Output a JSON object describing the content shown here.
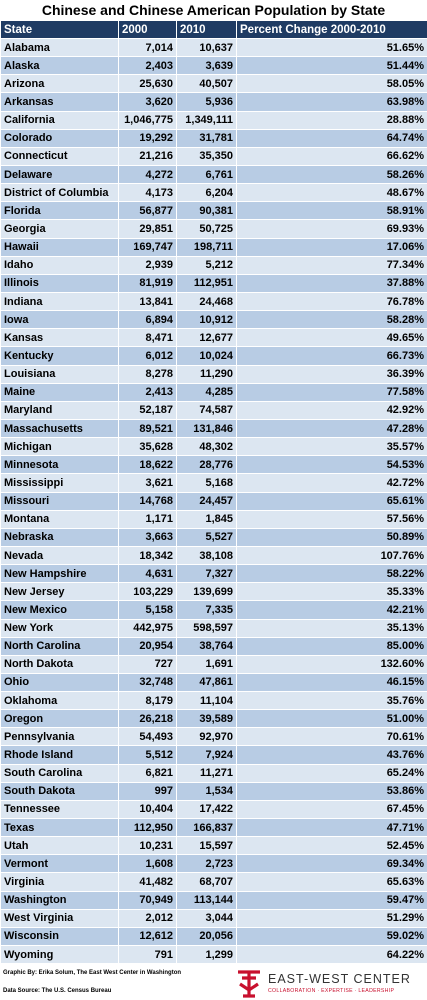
{
  "title": "Chinese and Chinese American Population by State",
  "table": {
    "header": [
      "State",
      "2000",
      "2010",
      "Percent Change 2000-2010"
    ],
    "rows": [
      [
        "Alabama",
        "7,014",
        "10,637",
        "51.65%"
      ],
      [
        "Alaska",
        "2,403",
        "3,639",
        "51.44%"
      ],
      [
        "Arizona",
        "25,630",
        "40,507",
        "58.05%"
      ],
      [
        "Arkansas",
        "3,620",
        "5,936",
        "63.98%"
      ],
      [
        "California",
        "1,046,775",
        "1,349,111",
        "28.88%"
      ],
      [
        "Colorado",
        "19,292",
        "31,781",
        "64.74%"
      ],
      [
        "Connecticut",
        "21,216",
        "35,350",
        "66.62%"
      ],
      [
        "Delaware",
        "4,272",
        "6,761",
        "58.26%"
      ],
      [
        "District of Columbia",
        "4,173",
        "6,204",
        "48.67%"
      ],
      [
        "Florida",
        "56,877",
        "90,381",
        "58.91%"
      ],
      [
        "Georgia",
        "29,851",
        "50,725",
        "69.93%"
      ],
      [
        "Hawaii",
        "169,747",
        "198,711",
        "17.06%"
      ],
      [
        "Idaho",
        "2,939",
        "5,212",
        "77.34%"
      ],
      [
        "Illinois",
        "81,919",
        "112,951",
        "37.88%"
      ],
      [
        "Indiana",
        "13,841",
        "24,468",
        "76.78%"
      ],
      [
        "Iowa",
        "6,894",
        "10,912",
        "58.28%"
      ],
      [
        "Kansas",
        "8,471",
        "12,677",
        "49.65%"
      ],
      [
        "Kentucky",
        "6,012",
        "10,024",
        "66.73%"
      ],
      [
        "Louisiana",
        "8,278",
        "11,290",
        "36.39%"
      ],
      [
        "Maine",
        "2,413",
        "4,285",
        "77.58%"
      ],
      [
        "Maryland",
        "52,187",
        "74,587",
        "42.92%"
      ],
      [
        "Massachusetts",
        "89,521",
        "131,846",
        "47.28%"
      ],
      [
        "Michigan",
        "35,628",
        "48,302",
        "35.57%"
      ],
      [
        "Minnesota",
        "18,622",
        "28,776",
        "54.53%"
      ],
      [
        "Mississippi",
        "3,621",
        "5,168",
        "42.72%"
      ],
      [
        "Missouri",
        "14,768",
        "24,457",
        "65.61%"
      ],
      [
        "Montana",
        "1,171",
        "1,845",
        "57.56%"
      ],
      [
        "Nebraska",
        "3,663",
        "5,527",
        "50.89%"
      ],
      [
        "Nevada",
        "18,342",
        "38,108",
        "107.76%"
      ],
      [
        "New Hampshire",
        "4,631",
        "7,327",
        "58.22%"
      ],
      [
        "New Jersey",
        "103,229",
        "139,699",
        "35.33%"
      ],
      [
        "New Mexico",
        "5,158",
        "7,335",
        "42.21%"
      ],
      [
        "New York",
        "442,975",
        "598,597",
        "35.13%"
      ],
      [
        "North Carolina",
        "20,954",
        "38,764",
        "85.00%"
      ],
      [
        "North Dakota",
        "727",
        "1,691",
        "132.60%"
      ],
      [
        "Ohio",
        "32,748",
        "47,861",
        "46.15%"
      ],
      [
        "Oklahoma",
        "8,179",
        "11,104",
        "35.76%"
      ],
      [
        "Oregon",
        "26,218",
        "39,589",
        "51.00%"
      ],
      [
        "Pennsylvania",
        "54,493",
        "92,970",
        "70.61%"
      ],
      [
        "Rhode Island",
        "5,512",
        "7,924",
        "43.76%"
      ],
      [
        "South Carolina",
        "6,821",
        "11,271",
        "65.24%"
      ],
      [
        "South Dakota",
        "997",
        "1,534",
        "53.86%"
      ],
      [
        "Tennessee",
        "10,404",
        "17,422",
        "67.45%"
      ],
      [
        "Texas",
        "112,950",
        "166,837",
        "47.71%"
      ],
      [
        "Utah",
        "10,231",
        "15,597",
        "52.45%"
      ],
      [
        "Vermont",
        "1,608",
        "2,723",
        "69.34%"
      ],
      [
        "Virginia",
        "41,482",
        "68,707",
        "65.63%"
      ],
      [
        "Washington",
        "70,949",
        "113,144",
        "59.47%"
      ],
      [
        "West Virginia",
        "2,012",
        "3,044",
        "51.29%"
      ],
      [
        "Wisconsin",
        "12,612",
        "20,056",
        "59.02%"
      ],
      [
        "Wyoming",
        "791",
        "1,299",
        "64.22%"
      ]
    ]
  },
  "footer": {
    "credit": "Graphic By: Erika Solum, The East West Center in Washington",
    "source": "Data Source: The U.S. Census Bureau",
    "logo_name": "EAST-WEST CENTER",
    "logo_tagline": "COLLABORATION · EXPERTISE · LEADERSHIP"
  }
}
